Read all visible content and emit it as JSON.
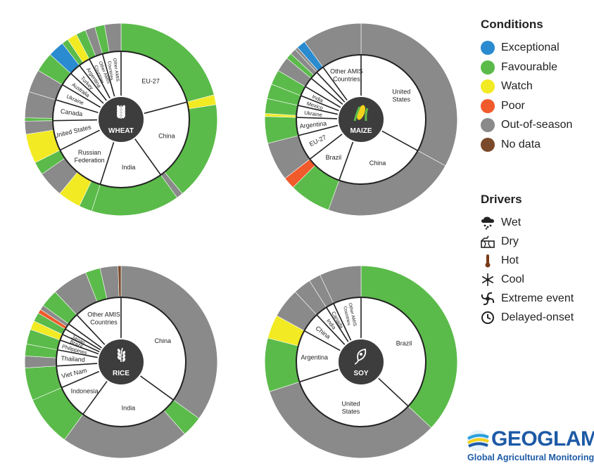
{
  "colors": {
    "Exceptional": "#2a8bd0",
    "Favourable": "#5bbb4a",
    "Watch": "#f2ea22",
    "Poor": "#f15a2b",
    "Out-of-season": "#8a8a8a",
    "No data": "#7b4a2a",
    "hub": "#3d3d3d"
  },
  "legend": {
    "conditions_title": "Conditions",
    "conditions": [
      {
        "label": "Exceptional",
        "color": "#2a8bd0"
      },
      {
        "label": "Favourable",
        "color": "#5bbb4a"
      },
      {
        "label": "Watch",
        "color": "#f2ea22"
      },
      {
        "label": "Poor",
        "color": "#f15a2b"
      },
      {
        "label": "Out-of-season",
        "color": "#8a8a8a"
      },
      {
        "label": "No data",
        "color": "#7b4a2a"
      }
    ],
    "drivers_title": "Drivers",
    "drivers": [
      {
        "label": "Wet",
        "icon": "rain-cloud-icon"
      },
      {
        "label": "Dry",
        "icon": "dry-cracked-earth-icon"
      },
      {
        "label": "Hot",
        "icon": "thermometer-icon"
      },
      {
        "label": "Cool",
        "icon": "snowflake-icon"
      },
      {
        "label": "Extreme event",
        "icon": "cyclone-icon"
      },
      {
        "label": "Delayed-onset",
        "icon": "clock-icon"
      }
    ]
  },
  "logo": {
    "name": "GEOGLAM",
    "tagline": "Global Agricultural Monitoring"
  },
  "chart_data": [
    {
      "type": "donut",
      "crop": "WHEAT",
      "countries": [
        {
          "name": "EU-27",
          "share": 19.0,
          "segments": [
            {
              "c": "Favourable",
              "s": 19.0
            }
          ]
        },
        {
          "name": "China",
          "share": 17.5,
          "segments": [
            {
              "c": "Watch",
              "s": 1.5
            },
            {
              "c": "Favourable",
              "s": 15.0
            },
            {
              "c": "Out-of-season",
              "s": 1.0
            }
          ]
        },
        {
          "name": "India",
          "share": 13.5,
          "segments": [
            {
              "c": "Favourable",
              "s": 13.5
            }
          ]
        },
        {
          "name": "Russian Federation",
          "share": 11.5,
          "segments": [
            {
              "c": "Favourable",
              "s": 2.0
            },
            {
              "c": "Watch",
              "s": 3.5
            },
            {
              "c": "Out-of-season",
              "s": 4.0
            },
            {
              "c": "Favourable",
              "s": 2.0
            }
          ]
        },
        {
          "name": "United States",
          "share": 6.5,
          "segments": [
            {
              "c": "Watch",
              "s": 4.5
            },
            {
              "c": "Out-of-season",
              "s": 2.0
            }
          ]
        },
        {
          "name": "Canada",
          "share": 4.5,
          "segments": [
            {
              "c": "Favourable",
              "s": 0.5
            },
            {
              "c": "Out-of-season",
              "s": 4.0
            }
          ]
        },
        {
          "name": "Ukraine",
          "share": 3.5,
          "segments": [
            {
              "c": "Out-of-season",
              "s": 3.5
            }
          ]
        },
        {
          "name": "Australia",
          "share": 3.0,
          "segments": [
            {
              "c": "Favourable",
              "s": 3.0
            }
          ]
        },
        {
          "name": "Turkey",
          "share": 2.5,
          "segments": [
            {
              "c": "Exceptional",
              "s": 2.5
            }
          ]
        },
        {
          "name": "Argentina",
          "share": 2.5,
          "segments": [
            {
              "c": "Favourable",
              "s": 1.0
            },
            {
              "c": "Watch",
              "s": 1.5
            }
          ]
        },
        {
          "name": "Other AMIS Countries",
          "share": 3.0,
          "segments": [
            {
              "c": "Favourable",
              "s": 1.5
            },
            {
              "c": "Out-of-season",
              "s": 1.5
            }
          ]
        },
        {
          "name": "Other AMIS Countries",
          "share": 4.0,
          "segments": [
            {
              "c": "Favourable",
              "s": 1.5
            },
            {
              "c": "Out-of-season",
              "s": 2.5
            }
          ]
        }
      ]
    },
    {
      "type": "donut",
      "crop": "MAIZE",
      "countries": [
        {
          "name": "United States",
          "share": 33.0,
          "segments": [
            {
              "c": "Out-of-season",
              "s": 33.0
            }
          ]
        },
        {
          "name": "China",
          "share": 22.5,
          "segments": [
            {
              "c": "Out-of-season",
              "s": 22.5
            }
          ]
        },
        {
          "name": "Brazil",
          "share": 9.0,
          "segments": [
            {
              "c": "Favourable",
              "s": 7.0
            },
            {
              "c": "Poor",
              "s": 2.0
            }
          ]
        },
        {
          "name": "EU-27",
          "share": 6.5,
          "segments": [
            {
              "c": "Out-of-season",
              "s": 6.5
            }
          ]
        },
        {
          "name": "Argentina",
          "share": 4.5,
          "segments": [
            {
              "c": "Favourable",
              "s": 4.5
            }
          ]
        },
        {
          "name": "Ukraine",
          "share": 3.0,
          "segments": [
            {
              "c": "Watch",
              "s": 0.5
            },
            {
              "c": "Favourable",
              "s": 2.5
            }
          ]
        },
        {
          "name": "Mexico",
          "share": 2.5,
          "segments": [
            {
              "c": "Favourable",
              "s": 2.5
            }
          ]
        },
        {
          "name": "India",
          "share": 2.5,
          "segments": [
            {
              "c": "Favourable",
              "s": 2.5
            }
          ]
        },
        {
          "name": "",
          "share": 2.5,
          "segments": [
            {
              "c": "Out-of-season",
              "s": 2.5
            }
          ]
        },
        {
          "name": "",
          "share": 2.0,
          "segments": [
            {
              "c": "Favourable",
              "s": 1.0
            },
            {
              "c": "Out-of-season",
              "s": 1.0
            }
          ]
        },
        {
          "name": "",
          "share": 2.0,
          "segments": [
            {
              "c": "Out-of-season",
              "s": 0.5
            },
            {
              "c": "Exceptional",
              "s": 1.5
            }
          ]
        },
        {
          "name": "Other AMIS Countries",
          "share": 10.0,
          "segments": [
            {
              "c": "Out-of-season",
              "s": 10.0
            }
          ]
        }
      ]
    },
    {
      "type": "donut",
      "crop": "RICE",
      "countries": [
        {
          "name": "China",
          "share": 35.0,
          "segments": [
            {
              "c": "Out-of-season",
              "s": 35.0
            }
          ]
        },
        {
          "name": "India",
          "share": 25.0,
          "segments": [
            {
              "c": "Favourable",
              "s": 3.5
            },
            {
              "c": "Out-of-season",
              "s": 21.5
            }
          ]
        },
        {
          "name": "Indonesia",
          "share": 8.5,
          "segments": [
            {
              "c": "Favourable",
              "s": 8.5
            }
          ]
        },
        {
          "name": "Viet Nam",
          "share": 5.5,
          "segments": [
            {
              "c": "Favourable",
              "s": 5.5
            }
          ]
        },
        {
          "name": "Thailand",
          "share": 4.0,
          "segments": [
            {
              "c": "Out-of-season",
              "s": 2.0
            },
            {
              "c": "Favourable",
              "s": 2.0
            }
          ]
        },
        {
          "name": "Philippines",
          "share": 2.5,
          "segments": [
            {
              "c": "Favourable",
              "s": 2.5
            }
          ]
        },
        {
          "name": "Brazil",
          "share": 1.5,
          "segments": [
            {
              "c": "Watch",
              "s": 1.5
            }
          ]
        },
        {
          "name": "Japan",
          "share": 1.5,
          "segments": [
            {
              "c": "Favourable",
              "s": 1.5
            }
          ]
        },
        {
          "name": "",
          "share": 1.5,
          "segments": [
            {
              "c": "Poor",
              "s": 0.7
            },
            {
              "c": "Out-of-season",
              "s": 0.8
            }
          ]
        },
        {
          "name": "",
          "share": 3.0,
          "segments": [
            {
              "c": "Favourable",
              "s": 3.0
            }
          ]
        },
        {
          "name": "Other AMIS Countries",
          "share": 12.0,
          "segments": [
            {
              "c": "Out-of-season",
              "s": 6.0
            },
            {
              "c": "Favourable",
              "s": 2.5
            },
            {
              "c": "Out-of-season",
              "s": 3.0
            },
            {
              "c": "No data",
              "s": 0.5
            }
          ]
        }
      ]
    },
    {
      "type": "donut",
      "crop": "SOY",
      "countries": [
        {
          "name": "Brazil",
          "share": 37.0,
          "segments": [
            {
              "c": "Favourable",
              "s": 37.0
            }
          ]
        },
        {
          "name": "United States",
          "share": 33.0,
          "segments": [
            {
              "c": "Out-of-season",
              "s": 33.0
            }
          ]
        },
        {
          "name": "Argentina",
          "share": 13.0,
          "segments": [
            {
              "c": "Favourable",
              "s": 9.0
            },
            {
              "c": "Watch",
              "s": 4.0
            }
          ]
        },
        {
          "name": "China",
          "share": 5.0,
          "segments": [
            {
              "c": "Out-of-season",
              "s": 5.0
            }
          ]
        },
        {
          "name": "India",
          "share": 3.0,
          "segments": [
            {
              "c": "Out-of-season",
              "s": 3.0
            }
          ]
        },
        {
          "name": "Canada",
          "share": 2.0,
          "segments": [
            {
              "c": "Out-of-season",
              "s": 2.0
            }
          ]
        },
        {
          "name": "Other AMIS Countries",
          "share": 7.0,
          "segments": [
            {
              "c": "Out-of-season",
              "s": 7.0
            }
          ]
        }
      ]
    }
  ]
}
